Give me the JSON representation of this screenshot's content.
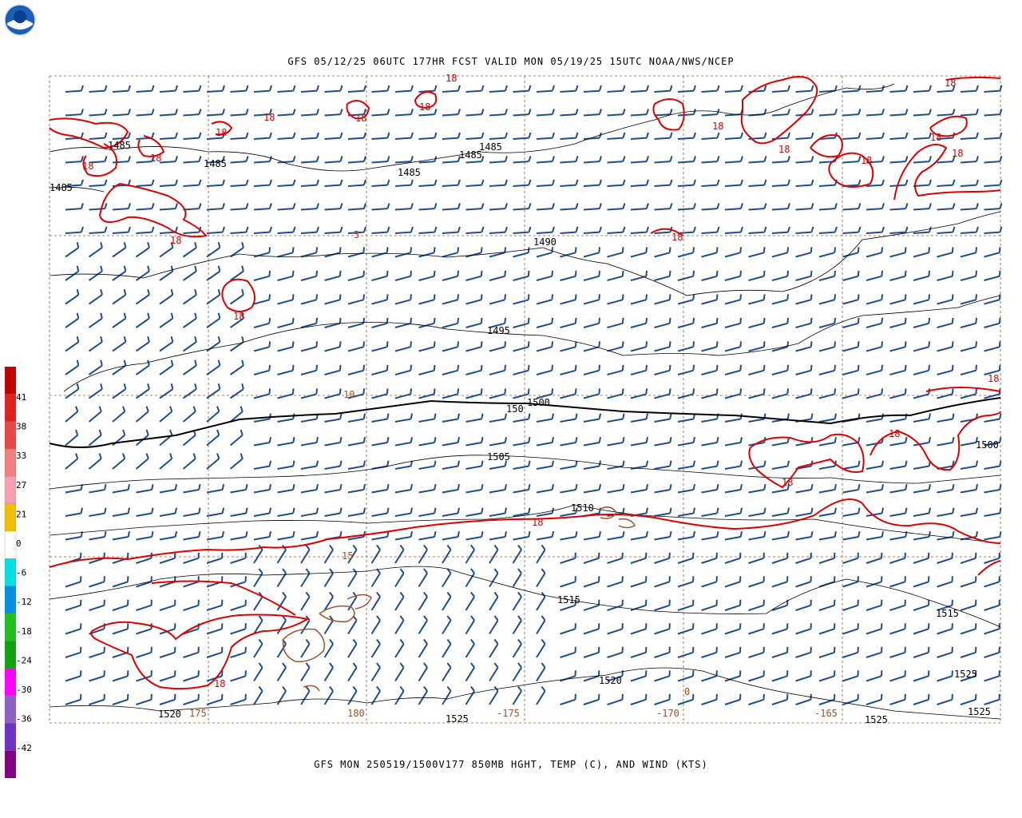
{
  "header": {
    "title": "GFS 05/12/25 06UTC 177HR FCST VALID MON 05/19/25 15UTC NOAA/NWS/NCEP"
  },
  "footer": {
    "title": "GFS MON 250519/1500V177 850MB HGHT, TEMP (C), AND WIND (KTS)"
  },
  "logo": {
    "text": "NOAA"
  },
  "colors": {
    "temp_contour": "#e00000",
    "height_contour": "#000000",
    "wind_barb": "#1f4e8c",
    "coast": "#a0522d",
    "grid": "#a0522d"
  },
  "colorbar": {
    "labels": [
      "41",
      "38",
      "33",
      "27",
      "21",
      "0",
      "-6",
      "-12",
      "-18",
      "-24",
      "-30",
      "-36",
      "-42"
    ],
    "colors": [
      "#c00000",
      "#e02020",
      "#e84848",
      "#f08080",
      "#f4a0b0",
      "#f0c000",
      "#ffffff",
      "#00e0e0",
      "#0090e0",
      "#20c020",
      "#10a010",
      "#ff00ff",
      "#9060c0",
      "#7030c0",
      "#800080"
    ]
  },
  "height_labels": [
    "1485",
    "1485",
    "1485",
    "1485",
    "1485",
    "1485",
    "1490",
    "1495",
    "1500",
    "150",
    "1505",
    "1510",
    "1515",
    "1515",
    "1520",
    "1520",
    "1525",
    "1525",
    "1525",
    "1525",
    "1500"
  ],
  "temp_labels": [
    "18",
    "18",
    "18",
    "18",
    "18",
    "18",
    "18",
    "18",
    "18",
    "18",
    "18",
    "18",
    "18",
    "18",
    "18",
    "18",
    "18",
    "18",
    "18",
    "18",
    "18"
  ],
  "lat_labels": [
    "5",
    "10",
    "15"
  ],
  "lon_labels": [
    "175",
    "180",
    "-175",
    "-170",
    "-165"
  ],
  "map_labels": {
    "zero": "0"
  }
}
